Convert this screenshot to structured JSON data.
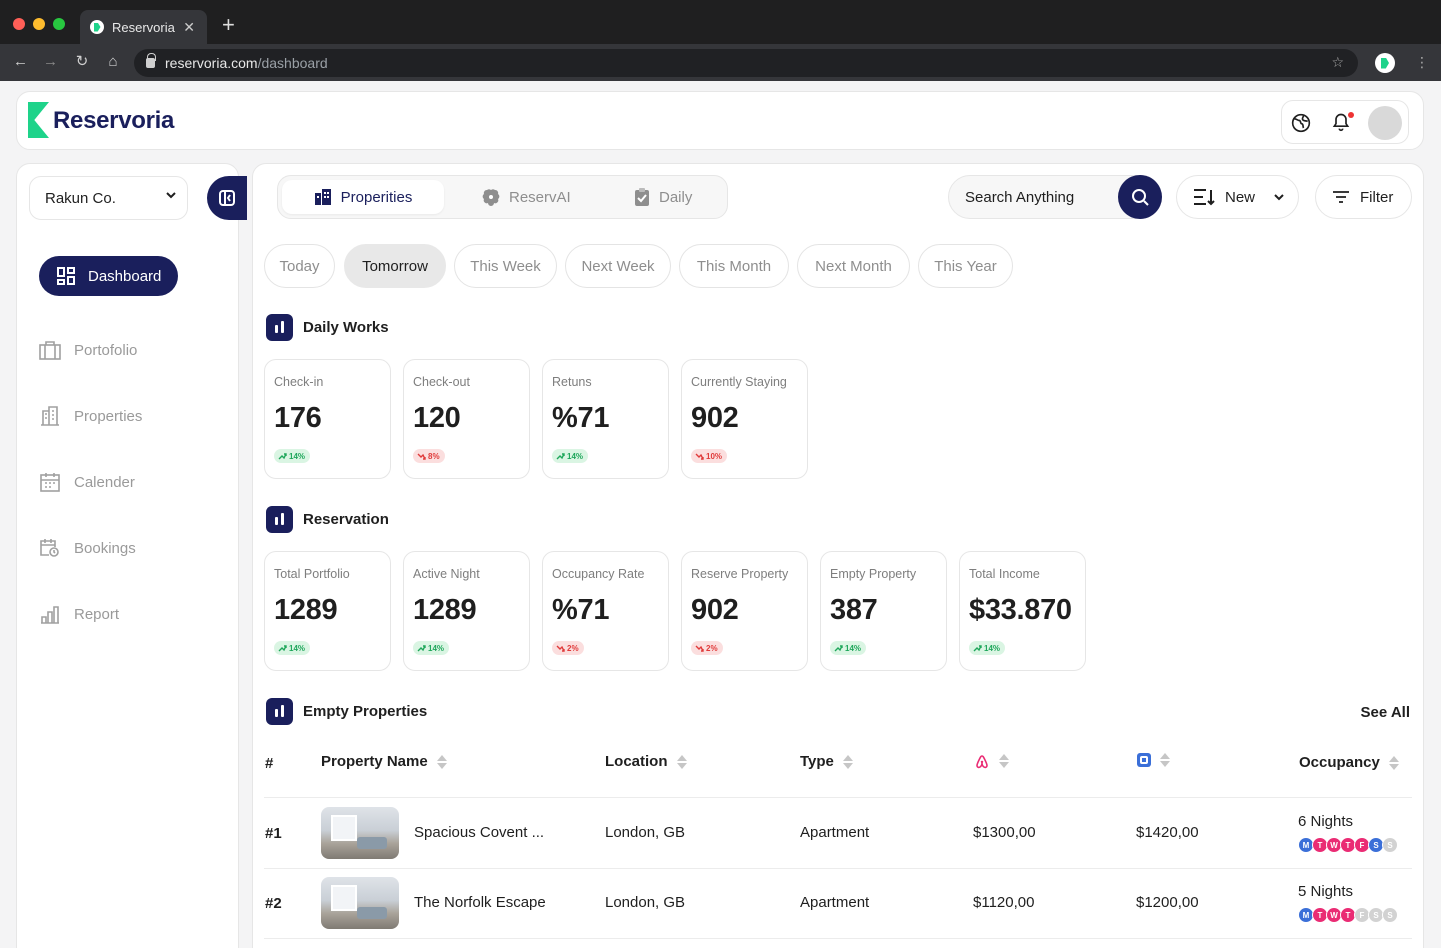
{
  "browser": {
    "tab_title": "Reservoria",
    "close_glyph": "✕",
    "url_host": "reservoria.com",
    "url_path": "/dashboard"
  },
  "header": {
    "logo_text": "Reservoria"
  },
  "sidebar": {
    "company": "Rakun Co.",
    "active_item": "Dashboard",
    "items": [
      {
        "label": "Portofolio",
        "icon": "briefcase-icon"
      },
      {
        "label": "Properties",
        "icon": "building-icon"
      },
      {
        "label": "Calender",
        "icon": "calendar-icon"
      },
      {
        "label": "Bookings",
        "icon": "booking-icon"
      },
      {
        "label": "Report",
        "icon": "report-icon"
      }
    ]
  },
  "toolbar": {
    "segments": [
      {
        "label": "Properities",
        "active": true
      },
      {
        "label": "ReservAI",
        "active": false
      },
      {
        "label": "Daily",
        "active": false
      }
    ],
    "search_placeholder": "Search Anything",
    "new_label": "New",
    "filter_label": "Filter"
  },
  "period_chips": [
    "Today",
    "Tomorrow",
    "This Week",
    "Next Week",
    "This Month",
    "Next Month",
    "This Year"
  ],
  "active_chip": "Tomorrow",
  "daily_works": {
    "title": "Daily Works",
    "cards": [
      {
        "label": "Check-in",
        "value": "176",
        "change": "14%",
        "trend": "up"
      },
      {
        "label": "Check-out",
        "value": "120",
        "change": "8%",
        "trend": "down"
      },
      {
        "label": "Retuns",
        "value": "%71",
        "change": "14%",
        "trend": "up"
      },
      {
        "label": "Currently Staying",
        "value": "902",
        "change": "10%",
        "trend": "down"
      }
    ]
  },
  "reservation": {
    "title": "Reservation",
    "cards": [
      {
        "label": "Total Portfolio",
        "value": "1289",
        "change": "14%",
        "trend": "up"
      },
      {
        "label": "Active Night",
        "value": "1289",
        "change": "14%",
        "trend": "up"
      },
      {
        "label": "Occupancy Rate",
        "value": "%71",
        "change": "2%",
        "trend": "down"
      },
      {
        "label": "Reserve Property",
        "value": "902",
        "change": "2%",
        "trend": "down"
      },
      {
        "label": "Empty Property",
        "value": "387",
        "change": "14%",
        "trend": "up"
      },
      {
        "label": "Total Income",
        "value": "$33.870",
        "change": "14%",
        "trend": "up"
      }
    ]
  },
  "empty_properties": {
    "title": "Empty Properties",
    "see_all": "See All",
    "columns": {
      "index": "#",
      "name": "Property Name",
      "location": "Location",
      "type": "Type",
      "occupancy": "Occupancy"
    },
    "rows": [
      {
        "index": "#1",
        "name": "Spacious Covent ...",
        "location": "London, GB",
        "type": "Apartment",
        "airbnb_price": "$1300,00",
        "booking_price": "$1420,00",
        "nights": "6 Nights",
        "days": [
          {
            "l": "M",
            "c": "#3b6fd8"
          },
          {
            "l": "T",
            "c": "#ea2c74"
          },
          {
            "l": "W",
            "c": "#ea2c74"
          },
          {
            "l": "T",
            "c": "#ea2c74"
          },
          {
            "l": "F",
            "c": "#ea2c74"
          },
          {
            "l": "S",
            "c": "#3b6fd8"
          },
          {
            "l": "S",
            "c": "#d2d2d2"
          }
        ]
      },
      {
        "index": "#2",
        "name": "The Norfolk Escape",
        "location": "London, GB",
        "type": "Apartment",
        "airbnb_price": "$1120,00",
        "booking_price": "$1200,00",
        "nights": "5 Nights",
        "days": [
          {
            "l": "M",
            "c": "#3b6fd8"
          },
          {
            "l": "T",
            "c": "#ea2c74"
          },
          {
            "l": "W",
            "c": "#ea2c74"
          },
          {
            "l": "T",
            "c": "#ea2c74"
          },
          {
            "l": "F",
            "c": "#d2d2d2"
          },
          {
            "l": "S",
            "c": "#d2d2d2"
          },
          {
            "l": "S",
            "c": "#d2d2d2"
          }
        ]
      }
    ]
  },
  "colors": {
    "brand": "#1a1f5c",
    "accent": "#1ed38a",
    "airbnb": "#ea2c74",
    "booking": "#3b6fd8"
  }
}
